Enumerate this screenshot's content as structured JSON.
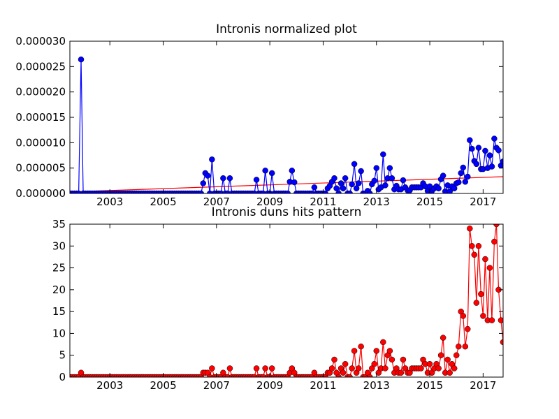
{
  "chart_data": [
    {
      "type": "line",
      "title": "Intronis normalized plot",
      "x": [
        2001.5,
        2001.58,
        2001.67,
        2001.75,
        2001.83,
        2001.92,
        2002,
        2002.08,
        2002.17,
        2002.25,
        2002.33,
        2002.42,
        2002.5,
        2002.58,
        2002.67,
        2002.75,
        2002.83,
        2002.92,
        2003,
        2003.08,
        2003.17,
        2003.25,
        2003.33,
        2003.42,
        2003.5,
        2003.58,
        2003.67,
        2003.75,
        2003.83,
        2003.92,
        2004,
        2004.08,
        2004.17,
        2004.25,
        2004.33,
        2004.42,
        2004.5,
        2004.58,
        2004.67,
        2004.75,
        2004.83,
        2004.92,
        2005,
        2005.08,
        2005.17,
        2005.25,
        2005.33,
        2005.42,
        2005.5,
        2005.58,
        2005.67,
        2005.75,
        2005.83,
        2005.92,
        2006,
        2006.08,
        2006.17,
        2006.25,
        2006.33,
        2006.42,
        2006.5,
        2006.58,
        2006.67,
        2006.75,
        2006.83,
        2006.92,
        2007,
        2007.08,
        2007.17,
        2007.25,
        2007.33,
        2007.42,
        2007.5,
        2007.58,
        2007.67,
        2007.75,
        2007.83,
        2007.92,
        2008,
        2008.08,
        2008.17,
        2008.25,
        2008.33,
        2008.42,
        2008.5,
        2008.58,
        2008.67,
        2008.75,
        2008.83,
        2008.92,
        2009,
        2009.08,
        2009.17,
        2009.25,
        2009.33,
        2009.42,
        2009.5,
        2009.58,
        2009.67,
        2009.75,
        2009.83,
        2009.92,
        2010,
        2010.08,
        2010.17,
        2010.25,
        2010.33,
        2010.42,
        2010.5,
        2010.58,
        2010.67,
        2010.75,
        2010.83,
        2010.92,
        2011,
        2011.08,
        2011.17,
        2011.25,
        2011.33,
        2011.42,
        2011.5,
        2011.58,
        2011.67,
        2011.75,
        2011.83,
        2011.92,
        2012,
        2012.08,
        2012.17,
        2012.25,
        2012.33,
        2012.42,
        2012.5,
        2012.58,
        2012.67,
        2012.75,
        2012.83,
        2012.92,
        2013,
        2013.08,
        2013.17,
        2013.25,
        2013.33,
        2013.42,
        2013.5,
        2013.58,
        2013.67,
        2013.75,
        2013.83,
        2013.92,
        2014,
        2014.08,
        2014.17,
        2014.25,
        2014.33,
        2014.42,
        2014.5,
        2014.58,
        2014.67,
        2014.75,
        2014.83,
        2014.92,
        2015,
        2015.08,
        2015.17,
        2015.25,
        2015.33,
        2015.42,
        2015.5,
        2015.58,
        2015.67,
        2015.75,
        2015.83,
        2015.92,
        2016,
        2016.08,
        2016.17,
        2016.25,
        2016.33,
        2016.42,
        2016.5,
        2016.58,
        2016.67,
        2016.75,
        2016.83,
        2016.92,
        2017,
        2017.08,
        2017.17,
        2017.25,
        2017.33,
        2017.42,
        2017.5,
        2017.58,
        2017.67,
        2017.75
      ],
      "series": [
        {
          "color": "#0000ff",
          "values": [
            0,
            0,
            0,
            0,
            0,
            2.64e-05,
            0,
            0,
            0,
            0,
            0,
            0,
            0,
            0,
            0,
            0,
            0,
            0,
            0,
            0,
            0,
            0,
            0,
            0,
            0,
            0,
            0,
            0,
            0,
            0,
            0,
            0,
            0,
            0,
            0,
            0,
            0,
            0,
            0,
            0,
            0,
            0,
            0,
            0,
            0,
            0,
            0,
            0,
            0,
            0,
            0,
            0,
            0,
            0,
            0,
            0,
            0,
            0,
            0,
            0,
            2e-06,
            4e-06,
            3.5e-06,
            0,
            6.7e-06,
            0,
            0,
            0,
            0,
            3e-06,
            0,
            0,
            3e-06,
            0,
            0,
            0,
            0,
            0,
            0,
            0,
            0,
            0,
            0,
            0,
            2.7e-06,
            0,
            0,
            0,
            4.5e-06,
            0,
            0,
            4e-06,
            0,
            0,
            0,
            0,
            0,
            0,
            0,
            2.3e-06,
            4.5e-06,
            2.2e-06,
            0,
            0,
            0,
            0,
            0,
            0,
            0,
            0,
            1.2e-06,
            0,
            0,
            0,
            0,
            0,
            1e-06,
            1.5e-06,
            2.3e-06,
            3e-06,
            1e-06,
            0,
            2e-06,
            1e-06,
            3e-06,
            0,
            0,
            1.8e-06,
            5.8e-06,
            1e-06,
            2e-06,
            4.4e-06,
            0,
            0,
            5e-07,
            0,
            1.8e-06,
            2.5e-06,
            5e-06,
            8e-07,
            1.2e-06,
            7.7e-06,
            1.6e-06,
            3e-06,
            5e-06,
            3e-06,
            8e-07,
            1.5e-06,
            8e-07,
            8e-07,
            2.6e-06,
            1.2e-06,
            6e-07,
            6e-07,
            1.2e-06,
            1.2e-06,
            1.2e-06,
            1.2e-06,
            1.2e-06,
            2e-06,
            1.4e-06,
            5e-07,
            1.4e-06,
            5e-07,
            1e-06,
            1.4e-06,
            1e-06,
            2.8e-06,
            3.5e-06,
            4e-07,
            1.6e-06,
            4e-07,
            1.4e-06,
            1e-06,
            2e-06,
            2.2e-06,
            4e-06,
            5.1e-06,
            2.3e-06,
            3.3e-06,
            1.05e-05,
            8.8e-06,
            6.4e-06,
            5.8e-06,
            9e-06,
            4.8e-06,
            4.8e-06,
            8.4e-06,
            5e-06,
            7.5e-06,
            5.3e-06,
            1.08e-05,
            9e-06,
            8.5e-06,
            5.5e-06,
            6.3e-06
          ]
        }
      ],
      "trend": {
        "x": [
          2001.5,
          2017.75
        ],
        "values": [
          3e-07,
          3.3e-06
        ],
        "color": "#ff0000"
      },
      "xlim": [
        2001.5,
        2017.75
      ],
      "xticks": [
        2003,
        2005,
        2007,
        2009,
        2011,
        2013,
        2015,
        2017
      ],
      "ylim": [
        0,
        3e-05
      ],
      "yticks": [
        {
          "value": 0,
          "label": "0.000000"
        },
        {
          "value": 5e-06,
          "label": "0.000005"
        },
        {
          "value": 1e-05,
          "label": "0.000010"
        },
        {
          "value": 1.5e-05,
          "label": "0.000015"
        },
        {
          "value": 2e-05,
          "label": "0.000020"
        },
        {
          "value": 2.5e-05,
          "label": "0.000025"
        },
        {
          "value": 3e-05,
          "label": "0.000030"
        }
      ],
      "grid": false
    },
    {
      "type": "line",
      "title": "Intronis duns hits pattern",
      "x": [
        2001.5,
        2001.58,
        2001.67,
        2001.75,
        2001.83,
        2001.92,
        2002,
        2002.08,
        2002.17,
        2002.25,
        2002.33,
        2002.42,
        2002.5,
        2002.58,
        2002.67,
        2002.75,
        2002.83,
        2002.92,
        2003,
        2003.08,
        2003.17,
        2003.25,
        2003.33,
        2003.42,
        2003.5,
        2003.58,
        2003.67,
        2003.75,
        2003.83,
        2003.92,
        2004,
        2004.08,
        2004.17,
        2004.25,
        2004.33,
        2004.42,
        2004.5,
        2004.58,
        2004.67,
        2004.75,
        2004.83,
        2004.92,
        2005,
        2005.08,
        2005.17,
        2005.25,
        2005.33,
        2005.42,
        2005.5,
        2005.58,
        2005.67,
        2005.75,
        2005.83,
        2005.92,
        2006,
        2006.08,
        2006.17,
        2006.25,
        2006.33,
        2006.42,
        2006.5,
        2006.58,
        2006.67,
        2006.75,
        2006.83,
        2006.92,
        2007,
        2007.08,
        2007.17,
        2007.25,
        2007.33,
        2007.42,
        2007.5,
        2007.58,
        2007.67,
        2007.75,
        2007.83,
        2007.92,
        2008,
        2008.08,
        2008.17,
        2008.25,
        2008.33,
        2008.42,
        2008.5,
        2008.58,
        2008.67,
        2008.75,
        2008.83,
        2008.92,
        2009,
        2009.08,
        2009.17,
        2009.25,
        2009.33,
        2009.42,
        2009.5,
        2009.58,
        2009.67,
        2009.75,
        2009.83,
        2009.92,
        2010,
        2010.08,
        2010.17,
        2010.25,
        2010.33,
        2010.42,
        2010.5,
        2010.58,
        2010.67,
        2010.75,
        2010.83,
        2010.92,
        2011,
        2011.08,
        2011.17,
        2011.25,
        2011.33,
        2011.42,
        2011.5,
        2011.58,
        2011.67,
        2011.75,
        2011.83,
        2011.92,
        2012,
        2012.08,
        2012.17,
        2012.25,
        2012.33,
        2012.42,
        2012.5,
        2012.58,
        2012.67,
        2012.75,
        2012.83,
        2012.92,
        2013,
        2013.08,
        2013.17,
        2013.25,
        2013.33,
        2013.42,
        2013.5,
        2013.58,
        2013.67,
        2013.75,
        2013.83,
        2013.92,
        2014,
        2014.08,
        2014.17,
        2014.25,
        2014.33,
        2014.42,
        2014.5,
        2014.58,
        2014.67,
        2014.75,
        2014.83,
        2014.92,
        2015,
        2015.08,
        2015.17,
        2015.25,
        2015.33,
        2015.42,
        2015.5,
        2015.58,
        2015.67,
        2015.75,
        2015.83,
        2015.92,
        2016,
        2016.08,
        2016.17,
        2016.25,
        2016.33,
        2016.42,
        2016.5,
        2016.58,
        2016.67,
        2016.75,
        2016.83,
        2016.92,
        2017,
        2017.08,
        2017.17,
        2017.25,
        2017.33,
        2017.42,
        2017.5,
        2017.58,
        2017.67,
        2017.75
      ],
      "series": [
        {
          "color": "#ff0000",
          "values": [
            0,
            0,
            0,
            0,
            0,
            1,
            0,
            0,
            0,
            0,
            0,
            0,
            0,
            0,
            0,
            0,
            0,
            0,
            0,
            0,
            0,
            0,
            0,
            0,
            0,
            0,
            0,
            0,
            0,
            0,
            0,
            0,
            0,
            0,
            0,
            0,
            0,
            0,
            0,
            0,
            0,
            0,
            0,
            0,
            0,
            0,
            0,
            0,
            0,
            0,
            0,
            0,
            0,
            0,
            0,
            0,
            0,
            0,
            0,
            0,
            1,
            1,
            1,
            0,
            2,
            0,
            0,
            0,
            0,
            1,
            0,
            0,
            2,
            0,
            0,
            0,
            0,
            0,
            0,
            0,
            0,
            0,
            0,
            0,
            2,
            0,
            0,
            0,
            2,
            0,
            0,
            2,
            0,
            0,
            0,
            0,
            0,
            0,
            0,
            1,
            2,
            1,
            0,
            0,
            0,
            0,
            0,
            0,
            0,
            0,
            1,
            0,
            0,
            0,
            0,
            0,
            1,
            1,
            2,
            4,
            1,
            0,
            2,
            1,
            3,
            0,
            0,
            2,
            6,
            1,
            2,
            7,
            0,
            0,
            1,
            0,
            2,
            3,
            6,
            1,
            2,
            8,
            2,
            5,
            6,
            4,
            1,
            2,
            1,
            1,
            4,
            2,
            1,
            1,
            2,
            2,
            2,
            2,
            2,
            4,
            3,
            1,
            3,
            1,
            2,
            3,
            2,
            5,
            9,
            1,
            4,
            1,
            3,
            2,
            5,
            7,
            15,
            14,
            7,
            11,
            34,
            30,
            28,
            17,
            30,
            19,
            14,
            27,
            13,
            25,
            13,
            31,
            35,
            20,
            13,
            8
          ]
        }
      ],
      "xlim": [
        2001.5,
        2017.75
      ],
      "xticks": [
        2003,
        2005,
        2007,
        2009,
        2011,
        2013,
        2015,
        2017
      ],
      "ylim": [
        0,
        35
      ],
      "yticks": [
        0,
        5,
        10,
        15,
        20,
        25,
        30,
        35
      ],
      "grid": false
    }
  ]
}
